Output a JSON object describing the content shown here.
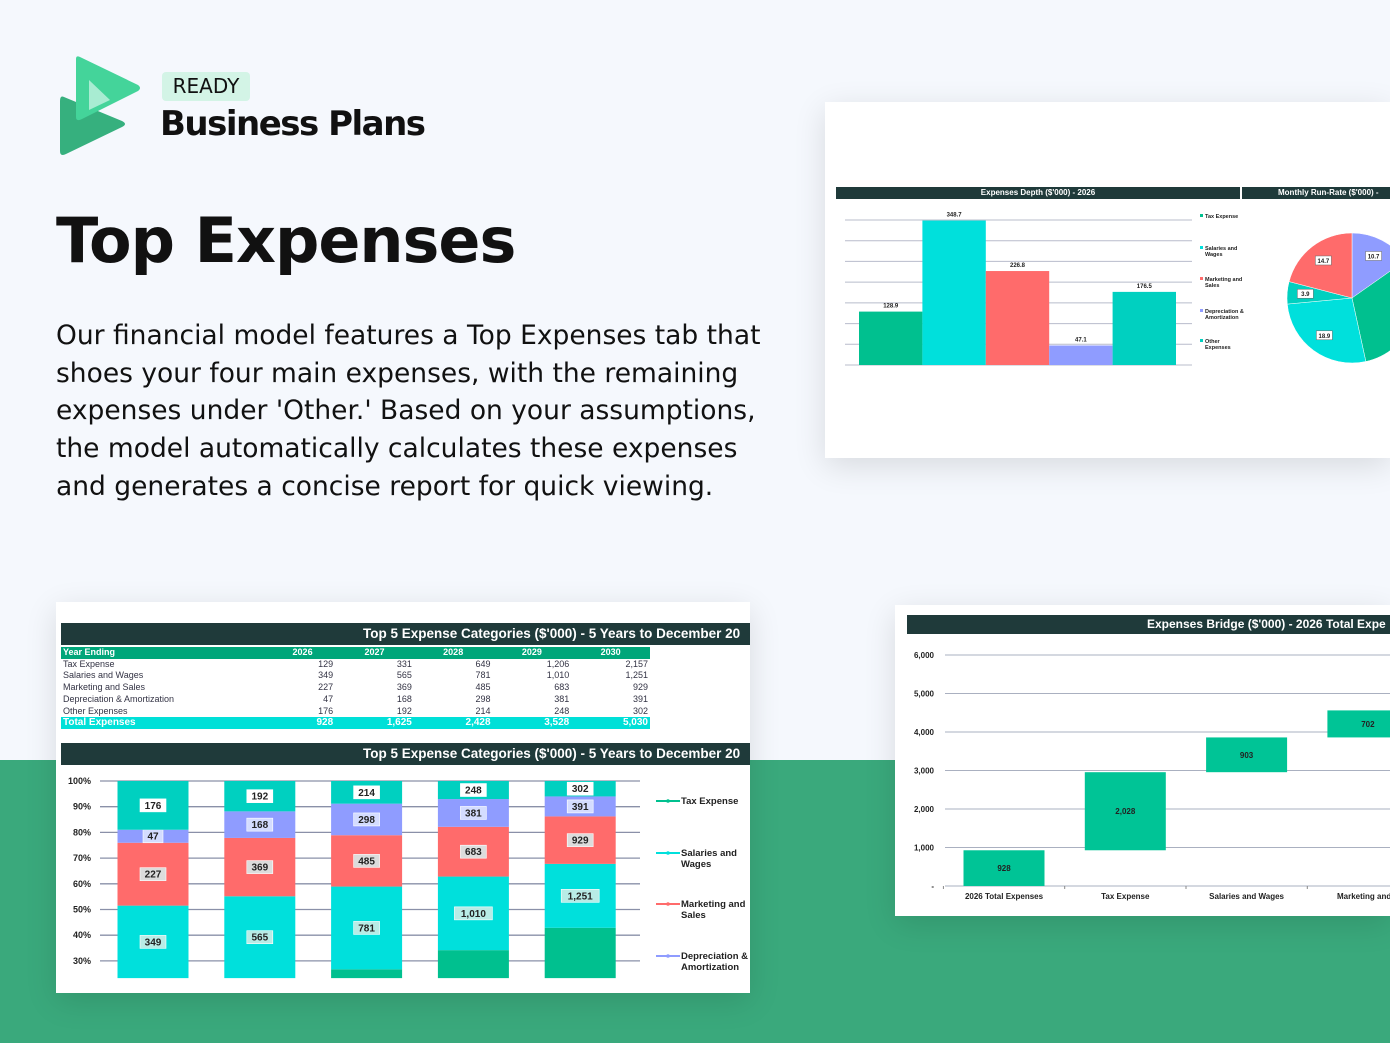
{
  "brand": {
    "badge": "READY",
    "name": "Business Plans"
  },
  "title": "Top Expenses",
  "description": "Our financial model features a Top Expenses tab that shoes your four main expenses, with the remaining expenses under 'Other.' Based on your assumptions, the model automatically calculates these expenses and generates a concise report for quick viewing.",
  "colors": {
    "tax": "#00c08f",
    "salaries": "#00e0dc",
    "marketing": "#ff6b6b",
    "depreciation": "#8f9cff",
    "other": "#00d0c0",
    "header": "#1f3a3a",
    "band": "#3aa97c"
  },
  "table": {
    "title": "Top 5 Expense Categories ($'000) - 5 Years to December 20",
    "header": [
      "Year Ending",
      "2026",
      "2027",
      "2028",
      "2029",
      "2030"
    ],
    "rows": [
      [
        "Tax Expense",
        "129",
        "331",
        "649",
        "1,206",
        "2,157"
      ],
      [
        "Salaries and Wages",
        "349",
        "565",
        "781",
        "1,010",
        "1,251"
      ],
      [
        "Marketing and Sales",
        "227",
        "369",
        "485",
        "683",
        "929"
      ],
      [
        "Depreciation & Amortization",
        "47",
        "168",
        "298",
        "381",
        "391"
      ],
      [
        "Other Expenses",
        "176",
        "192",
        "214",
        "248",
        "302"
      ]
    ],
    "total": [
      "Total Expenses",
      "928",
      "1,625",
      "2,428",
      "3,528",
      "5,030"
    ]
  },
  "chart_data": [
    {
      "type": "bar",
      "title": "Expenses Depth ($'000) - 2026",
      "categories": [
        "Tax Expense",
        "Salaries and Wages",
        "Marketing and Sales",
        "Depreciation & Amortization",
        "Other Expenses"
      ],
      "values": [
        128.9,
        348.7,
        226.8,
        47.1,
        176.5
      ],
      "value_labels": [
        "128.9",
        "348.7",
        "226.8",
        "47.1",
        "176.5"
      ],
      "ylim": [
        0,
        350
      ],
      "grid": true,
      "legend": "right"
    },
    {
      "type": "pie",
      "title": "Monthly Run-Rate ($'000) -",
      "slices": [
        {
          "category": "Depreciation & Amortization",
          "value": 10.7,
          "label": "10.7"
        },
        {
          "category": "Tax Expense",
          "value": 22,
          "label": ""
        },
        {
          "category": "Salaries and Wages",
          "value": 18.9,
          "label": "18.9"
        },
        {
          "category": "Other Expenses",
          "value": 3.9,
          "label": "3.9"
        },
        {
          "category": "Marketing and Sales",
          "value": 14.7,
          "label": "14.7"
        }
      ]
    },
    {
      "type": "bar",
      "stacked": "percent",
      "title": "Top 5 Expense Categories ($'000) - 5 Years to December 20",
      "categories": [
        "2026",
        "2027",
        "2028",
        "2029",
        "2030"
      ],
      "series": [
        {
          "name": "Tax Expense",
          "values": [
            129,
            331,
            649,
            1206,
            2157
          ]
        },
        {
          "name": "Salaries and Wages",
          "values": [
            349,
            565,
            781,
            1010,
            1251
          ]
        },
        {
          "name": "Marketing and Sales",
          "values": [
            227,
            369,
            485,
            683,
            929
          ]
        },
        {
          "name": "Depreciation & Amortization",
          "values": [
            47,
            168,
            298,
            381,
            391
          ]
        },
        {
          "name": "Other Expenses",
          "values": [
            176,
            192,
            214,
            248,
            302
          ]
        }
      ],
      "y_ticks": [
        "100%",
        "90%",
        "80%",
        "70%",
        "60%",
        "50%",
        "40%",
        "30%"
      ],
      "legend_labels": [
        "Tax Expense",
        "Salaries and Wages",
        "Marketing and Sales",
        "Depreciation & Amortization"
      ],
      "grid": true,
      "legend": "right"
    },
    {
      "type": "waterfall",
      "title": "Expenses Bridge ($'000) - 2026 Total Expe",
      "categories": [
        "2026 Total Expenses",
        "Tax Expense",
        "Salaries and Wages",
        "Marketing and S"
      ],
      "values": [
        928,
        2028,
        903,
        702
      ],
      "value_labels": [
        "928",
        "2,028",
        "903",
        "702"
      ],
      "y_ticks": [
        "6,000",
        "5,000",
        "4,000",
        "3,000",
        "2,000",
        "1,000",
        "-"
      ],
      "ylim": [
        0,
        6000
      ],
      "grid": true
    }
  ]
}
